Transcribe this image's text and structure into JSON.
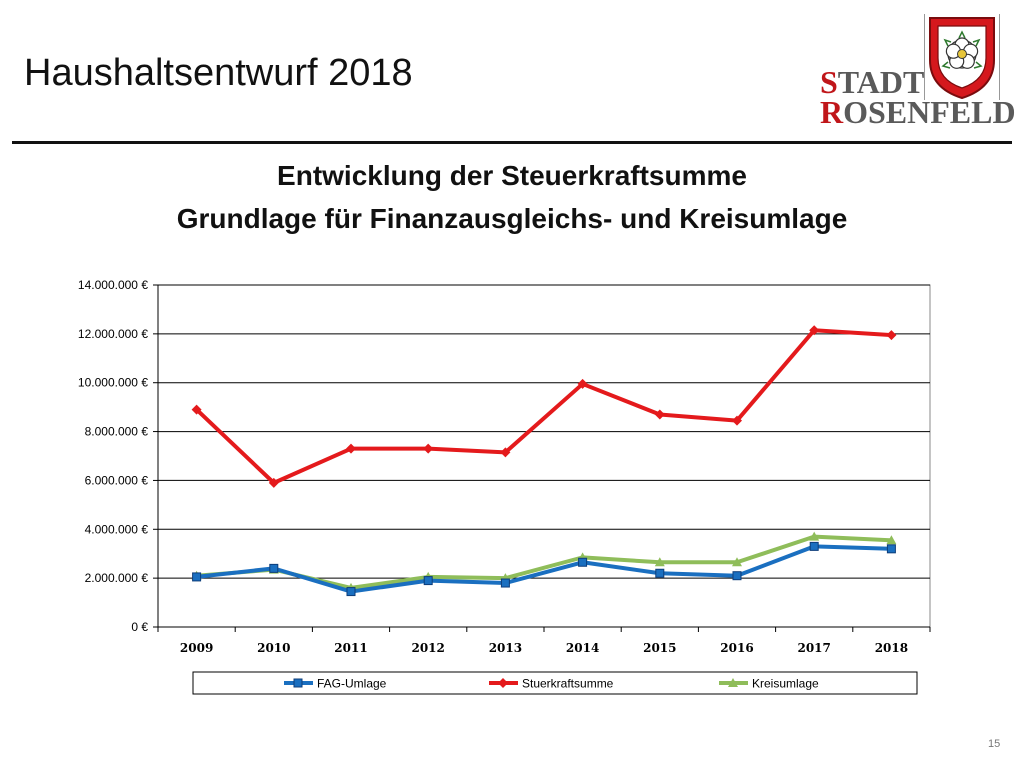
{
  "slide": {
    "title": "Haushaltsentwurf 2018",
    "page_number": "15"
  },
  "logo": {
    "line1_cap": "S",
    "line1_rest": "TADT",
    "line2_cap": "R",
    "line2_rest": "OSENFELD"
  },
  "colors": {
    "fag": "#1a6fc0",
    "steuer": "#e41a1c",
    "kreis": "#8fbd5a",
    "crest_red": "#d5181d"
  },
  "chart_data": {
    "type": "line",
    "title": "Entwicklung der Steuerkraftsumme",
    "subtitle": "Grundlage für Finanzausgleichs- und Kreisumlage",
    "categories": [
      "2009",
      "2010",
      "2011",
      "2012",
      "2013",
      "2014",
      "2015",
      "2016",
      "2017",
      "2018"
    ],
    "ylim": [
      0,
      14000000
    ],
    "yticks": [
      {
        "value": 0,
        "label": "0 €"
      },
      {
        "value": 2000000,
        "label": "2.000.000 €"
      },
      {
        "value": 4000000,
        "label": "4.000.000 €"
      },
      {
        "value": 6000000,
        "label": "6.000.000 €"
      },
      {
        "value": 8000000,
        "label": "8.000.000 €"
      },
      {
        "value": 10000000,
        "label": "10.000.000 €"
      },
      {
        "value": 12000000,
        "label": "12.000.000 €"
      },
      {
        "value": 14000000,
        "label": "14.000.000 €"
      }
    ],
    "grid": true,
    "legend_position": "bottom",
    "series": [
      {
        "name": "FAG-Umlage",
        "color_key": "fag",
        "marker": "square",
        "values": [
          2050000,
          2400000,
          1450000,
          1900000,
          1800000,
          2650000,
          2200000,
          2100000,
          3300000,
          3200000
        ]
      },
      {
        "name": "Stuerkraftsumme",
        "color_key": "steuer",
        "marker": "diamond",
        "values": [
          8900000,
          5900000,
          7300000,
          7300000,
          7150000,
          9950000,
          8700000,
          8450000,
          12150000,
          11950000
        ]
      },
      {
        "name": "Kreisumlage",
        "color_key": "kreis",
        "marker": "triangle",
        "values": [
          2100000,
          2350000,
          1600000,
          2050000,
          2000000,
          2850000,
          2650000,
          2650000,
          3700000,
          3550000
        ]
      }
    ]
  }
}
